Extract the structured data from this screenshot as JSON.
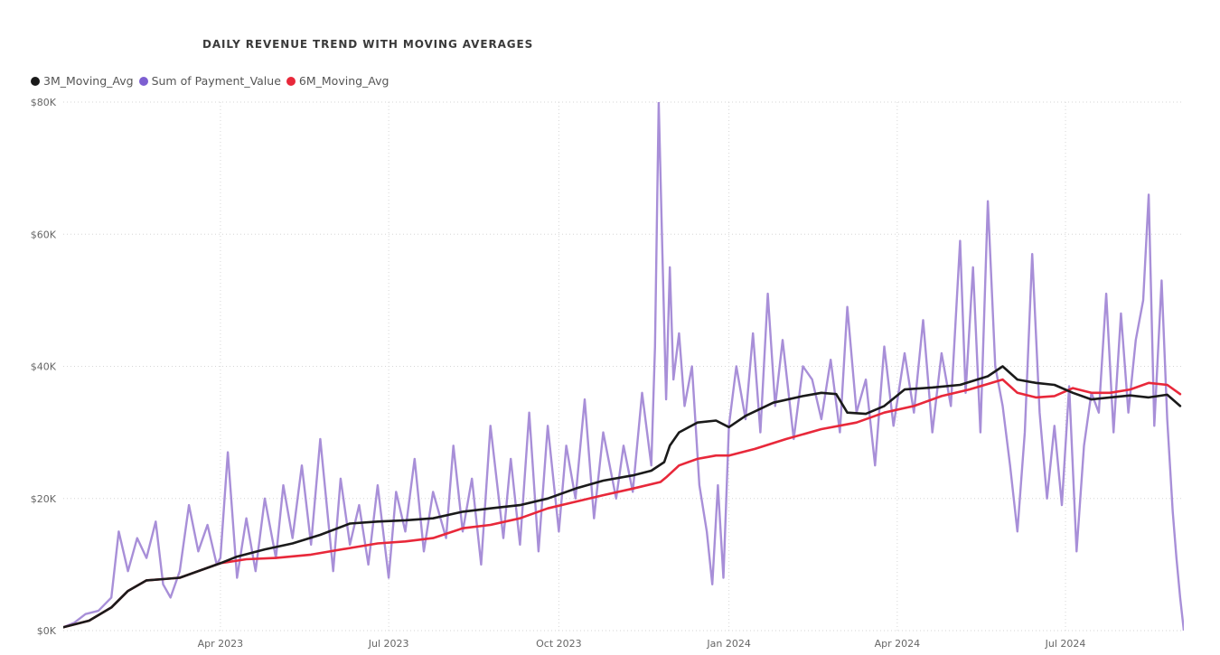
{
  "chart_data": {
    "type": "line",
    "title": "DAILY REVENUE TREND WITH MOVING AVERAGES",
    "xlabel": "",
    "ylabel": "",
    "ylim": [
      0,
      80000
    ],
    "xlim": [
      "2023-01-06",
      "2024-09-03"
    ],
    "y_ticks": [
      "$0K",
      "$20K",
      "$40K",
      "$60K",
      "$80K"
    ],
    "y_tick_values": [
      0,
      20000,
      40000,
      60000,
      80000
    ],
    "x_ticks": [
      "Apr 2023",
      "Jul 2023",
      "Oct 2023",
      "Jan 2024",
      "Apr 2024",
      "Jul 2024"
    ],
    "x_tick_dates": [
      "2023-04-01",
      "2023-07-01",
      "2023-10-01",
      "2024-01-01",
      "2024-04-01",
      "2024-07-01"
    ],
    "grid": true,
    "legend_position": "top-left",
    "series": [
      {
        "name": "3M_Moving_Avg",
        "color": "#1a1a1a",
        "points": [
          [
            "2023-01-06",
            500
          ],
          [
            "2023-01-20",
            1500
          ],
          [
            "2023-02-01",
            3500
          ],
          [
            "2023-02-10",
            6000
          ],
          [
            "2023-02-20",
            7600
          ],
          [
            "2023-03-01",
            7800
          ],
          [
            "2023-03-10",
            8000
          ],
          [
            "2023-03-25",
            9500
          ],
          [
            "2023-04-01",
            10200
          ],
          [
            "2023-04-10",
            11200
          ],
          [
            "2023-04-25",
            12300
          ],
          [
            "2023-05-10",
            13200
          ],
          [
            "2023-05-25",
            14500
          ],
          [
            "2023-06-10",
            16200
          ],
          [
            "2023-06-25",
            16500
          ],
          [
            "2023-07-10",
            16700
          ],
          [
            "2023-07-25",
            17000
          ],
          [
            "2023-08-10",
            18000
          ],
          [
            "2023-08-25",
            18500
          ],
          [
            "2023-09-10",
            19000
          ],
          [
            "2023-09-25",
            20000
          ],
          [
            "2023-10-10",
            21500
          ],
          [
            "2023-10-25",
            22700
          ],
          [
            "2023-11-10",
            23500
          ],
          [
            "2023-11-20",
            24200
          ],
          [
            "2023-11-27",
            25500
          ],
          [
            "2023-11-30",
            28000
          ],
          [
            "2023-12-05",
            30000
          ],
          [
            "2023-12-15",
            31500
          ],
          [
            "2023-12-25",
            31800
          ],
          [
            "2024-01-01",
            30800
          ],
          [
            "2024-01-10",
            32500
          ],
          [
            "2024-01-25",
            34500
          ],
          [
            "2024-02-10",
            35500
          ],
          [
            "2024-02-20",
            36000
          ],
          [
            "2024-02-28",
            35800
          ],
          [
            "2024-03-05",
            33000
          ],
          [
            "2024-03-15",
            32800
          ],
          [
            "2024-03-25",
            34000
          ],
          [
            "2024-04-05",
            36500
          ],
          [
            "2024-04-20",
            36800
          ],
          [
            "2024-05-05",
            37200
          ],
          [
            "2024-05-20",
            38500
          ],
          [
            "2024-05-28",
            40000
          ],
          [
            "2024-06-05",
            38000
          ],
          [
            "2024-06-15",
            37500
          ],
          [
            "2024-06-25",
            37200
          ],
          [
            "2024-07-05",
            36000
          ],
          [
            "2024-07-15",
            35000
          ],
          [
            "2024-07-25",
            35300
          ],
          [
            "2024-08-05",
            35600
          ],
          [
            "2024-08-15",
            35300
          ],
          [
            "2024-08-25",
            35700
          ],
          [
            "2024-09-01",
            34000
          ]
        ]
      },
      {
        "name": "Sum of Payment_Value",
        "color": "#a88fd8",
        "points": [
          [
            "2023-01-06",
            500
          ],
          [
            "2023-01-12",
            1200
          ],
          [
            "2023-01-18",
            2500
          ],
          [
            "2023-01-25",
            3000
          ],
          [
            "2023-02-01",
            5000
          ],
          [
            "2023-02-05",
            15000
          ],
          [
            "2023-02-10",
            9000
          ],
          [
            "2023-02-15",
            14000
          ],
          [
            "2023-02-20",
            11000
          ],
          [
            "2023-02-25",
            16500
          ],
          [
            "2023-03-01",
            7000
          ],
          [
            "2023-03-05",
            5000
          ],
          [
            "2023-03-10",
            9000
          ],
          [
            "2023-03-15",
            19000
          ],
          [
            "2023-03-20",
            12000
          ],
          [
            "2023-03-25",
            16000
          ],
          [
            "2023-03-30",
            10000
          ],
          [
            "2023-04-01",
            11000
          ],
          [
            "2023-04-05",
            27000
          ],
          [
            "2023-04-10",
            8000
          ],
          [
            "2023-04-15",
            17000
          ],
          [
            "2023-04-20",
            9000
          ],
          [
            "2023-04-25",
            20000
          ],
          [
            "2023-05-01",
            11000
          ],
          [
            "2023-05-05",
            22000
          ],
          [
            "2023-05-10",
            14000
          ],
          [
            "2023-05-15",
            25000
          ],
          [
            "2023-05-20",
            13000
          ],
          [
            "2023-05-25",
            29000
          ],
          [
            "2023-06-01",
            9000
          ],
          [
            "2023-06-05",
            23000
          ],
          [
            "2023-06-10",
            13000
          ],
          [
            "2023-06-15",
            19000
          ],
          [
            "2023-06-20",
            10000
          ],
          [
            "2023-06-25",
            22000
          ],
          [
            "2023-07-01",
            8000
          ],
          [
            "2023-07-05",
            21000
          ],
          [
            "2023-07-10",
            15000
          ],
          [
            "2023-07-15",
            26000
          ],
          [
            "2023-07-20",
            12000
          ],
          [
            "2023-07-25",
            21000
          ],
          [
            "2023-08-01",
            14000
          ],
          [
            "2023-08-05",
            28000
          ],
          [
            "2023-08-10",
            15000
          ],
          [
            "2023-08-15",
            23000
          ],
          [
            "2023-08-20",
            10000
          ],
          [
            "2023-08-25",
            31000
          ],
          [
            "2023-09-01",
            14000
          ],
          [
            "2023-09-05",
            26000
          ],
          [
            "2023-09-10",
            13000
          ],
          [
            "2023-09-15",
            33000
          ],
          [
            "2023-09-20",
            12000
          ],
          [
            "2023-09-25",
            31000
          ],
          [
            "2023-10-01",
            15000
          ],
          [
            "2023-10-05",
            28000
          ],
          [
            "2023-10-10",
            20000
          ],
          [
            "2023-10-15",
            35000
          ],
          [
            "2023-10-20",
            17000
          ],
          [
            "2023-10-25",
            30000
          ],
          [
            "2023-11-01",
            20000
          ],
          [
            "2023-11-05",
            28000
          ],
          [
            "2023-11-10",
            21000
          ],
          [
            "2023-11-15",
            36000
          ],
          [
            "2023-11-20",
            25000
          ],
          [
            "2023-11-22",
            43000
          ],
          [
            "2023-11-24",
            80000
          ],
          [
            "2023-11-26",
            57000
          ],
          [
            "2023-11-28",
            35000
          ],
          [
            "2023-11-30",
            55000
          ],
          [
            "2023-12-02",
            38000
          ],
          [
            "2023-12-05",
            45000
          ],
          [
            "2023-12-08",
            34000
          ],
          [
            "2023-12-12",
            40000
          ],
          [
            "2023-12-16",
            22000
          ],
          [
            "2023-12-20",
            15000
          ],
          [
            "2023-12-23",
            7000
          ],
          [
            "2023-12-26",
            22000
          ],
          [
            "2023-12-29",
            8000
          ],
          [
            "2024-01-01",
            31000
          ],
          [
            "2024-01-05",
            40000
          ],
          [
            "2024-01-10",
            32000
          ],
          [
            "2024-01-14",
            45000
          ],
          [
            "2024-01-18",
            30000
          ],
          [
            "2024-01-22",
            51000
          ],
          [
            "2024-01-26",
            34000
          ],
          [
            "2024-01-30",
            44000
          ],
          [
            "2024-02-05",
            29000
          ],
          [
            "2024-02-10",
            40000
          ],
          [
            "2024-02-15",
            38000
          ],
          [
            "2024-02-20",
            32000
          ],
          [
            "2024-02-25",
            41000
          ],
          [
            "2024-03-01",
            30000
          ],
          [
            "2024-03-05",
            49000
          ],
          [
            "2024-03-10",
            33000
          ],
          [
            "2024-03-15",
            38000
          ],
          [
            "2024-03-20",
            25000
          ],
          [
            "2024-03-25",
            43000
          ],
          [
            "2024-03-30",
            31000
          ],
          [
            "2024-04-05",
            42000
          ],
          [
            "2024-04-10",
            33000
          ],
          [
            "2024-04-15",
            47000
          ],
          [
            "2024-04-20",
            30000
          ],
          [
            "2024-04-25",
            42000
          ],
          [
            "2024-04-30",
            34000
          ],
          [
            "2024-05-05",
            59000
          ],
          [
            "2024-05-08",
            36000
          ],
          [
            "2024-05-12",
            55000
          ],
          [
            "2024-05-16",
            30000
          ],
          [
            "2024-05-20",
            65000
          ],
          [
            "2024-05-24",
            40000
          ],
          [
            "2024-05-28",
            34000
          ],
          [
            "2024-06-01",
            25000
          ],
          [
            "2024-06-05",
            15000
          ],
          [
            "2024-06-09",
            30000
          ],
          [
            "2024-06-13",
            57000
          ],
          [
            "2024-06-17",
            33000
          ],
          [
            "2024-06-21",
            20000
          ],
          [
            "2024-06-25",
            31000
          ],
          [
            "2024-06-29",
            19000
          ],
          [
            "2024-07-03",
            37000
          ],
          [
            "2024-07-07",
            12000
          ],
          [
            "2024-07-11",
            28000
          ],
          [
            "2024-07-15",
            36000
          ],
          [
            "2024-07-19",
            33000
          ],
          [
            "2024-07-23",
            51000
          ],
          [
            "2024-07-27",
            30000
          ],
          [
            "2024-07-31",
            48000
          ],
          [
            "2024-08-04",
            33000
          ],
          [
            "2024-08-08",
            44000
          ],
          [
            "2024-08-12",
            50000
          ],
          [
            "2024-08-15",
            66000
          ],
          [
            "2024-08-18",
            31000
          ],
          [
            "2024-08-22",
            53000
          ],
          [
            "2024-08-25",
            32000
          ],
          [
            "2024-08-28",
            18000
          ],
          [
            "2024-08-30",
            11000
          ],
          [
            "2024-09-01",
            5000
          ],
          [
            "2024-09-03",
            0
          ]
        ]
      },
      {
        "name": "6M_Moving_Avg",
        "color": "#e8283a",
        "points": [
          [
            "2023-01-06",
            500
          ],
          [
            "2023-01-20",
            1500
          ],
          [
            "2023-02-01",
            3500
          ],
          [
            "2023-02-10",
            6000
          ],
          [
            "2023-02-20",
            7600
          ],
          [
            "2023-03-01",
            7800
          ],
          [
            "2023-03-10",
            8000
          ],
          [
            "2023-03-25",
            9500
          ],
          [
            "2023-04-01",
            10200
          ],
          [
            "2023-04-15",
            10800
          ],
          [
            "2023-05-01",
            11000
          ],
          [
            "2023-05-20",
            11500
          ],
          [
            "2023-06-10",
            12500
          ],
          [
            "2023-06-25",
            13200
          ],
          [
            "2023-07-10",
            13500
          ],
          [
            "2023-07-25",
            14000
          ],
          [
            "2023-08-10",
            15500
          ],
          [
            "2023-08-25",
            16000
          ],
          [
            "2023-09-10",
            17000
          ],
          [
            "2023-09-25",
            18500
          ],
          [
            "2023-10-10",
            19500
          ],
          [
            "2023-10-25",
            20500
          ],
          [
            "2023-11-10",
            21500
          ],
          [
            "2023-11-25",
            22500
          ],
          [
            "2023-11-28",
            23200
          ],
          [
            "2023-12-05",
            25000
          ],
          [
            "2023-12-15",
            26000
          ],
          [
            "2023-12-25",
            26500
          ],
          [
            "2024-01-01",
            26500
          ],
          [
            "2024-01-15",
            27500
          ],
          [
            "2024-02-01",
            29000
          ],
          [
            "2024-02-20",
            30500
          ],
          [
            "2024-03-10",
            31500
          ],
          [
            "2024-03-25",
            33000
          ],
          [
            "2024-04-10",
            34000
          ],
          [
            "2024-04-25",
            35500
          ],
          [
            "2024-05-10",
            36500
          ],
          [
            "2024-05-28",
            38000
          ],
          [
            "2024-06-05",
            36000
          ],
          [
            "2024-06-15",
            35300
          ],
          [
            "2024-06-25",
            35500
          ],
          [
            "2024-07-05",
            36700
          ],
          [
            "2024-07-15",
            36000
          ],
          [
            "2024-07-25",
            36000
          ],
          [
            "2024-08-05",
            36500
          ],
          [
            "2024-08-15",
            37500
          ],
          [
            "2024-08-25",
            37200
          ],
          [
            "2024-09-01",
            35800
          ]
        ]
      }
    ]
  }
}
